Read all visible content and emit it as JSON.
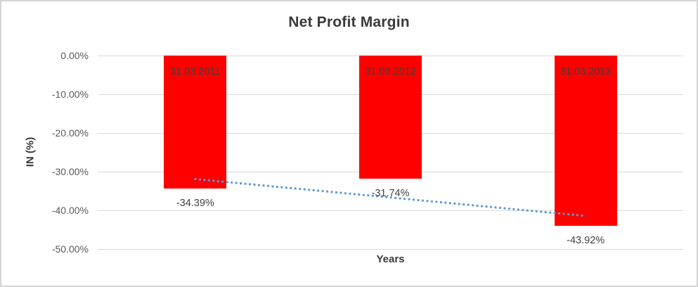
{
  "chart_data": {
    "type": "bar",
    "title": "Net Profit Margin",
    "categories": [
      "31.03.2011",
      "31.03.2012",
      "31.03.2013"
    ],
    "values": [
      -34.39,
      -31.74,
      -43.92
    ],
    "value_labels": [
      "-34.39%",
      "-31.74%",
      "-43.92%"
    ],
    "xlabel": "Years",
    "ylabel": "IN (%)",
    "ylim": [
      -50,
      0
    ],
    "ytick_values": [
      0,
      -10,
      -20,
      -30,
      -40,
      -50
    ],
    "ytick_labels": [
      "0.00%",
      "-10.00%",
      "-20.00%",
      "-30.00%",
      "-40.00%",
      "-50.00%"
    ],
    "grid": true,
    "legend": false,
    "colors": {
      "bar": "#ff0000",
      "bar_category_label": "#3f3f3f",
      "value_label": "#404040",
      "gridline": "#d9d9d9",
      "axis_text": "#595959",
      "title_text": "#3a3a3a",
      "trendline": "#5b9bd5",
      "frame_border": "#d4d4d4"
    },
    "trendline": {
      "type": "linear",
      "style": "dotted",
      "color": "#5b9bd5"
    }
  }
}
